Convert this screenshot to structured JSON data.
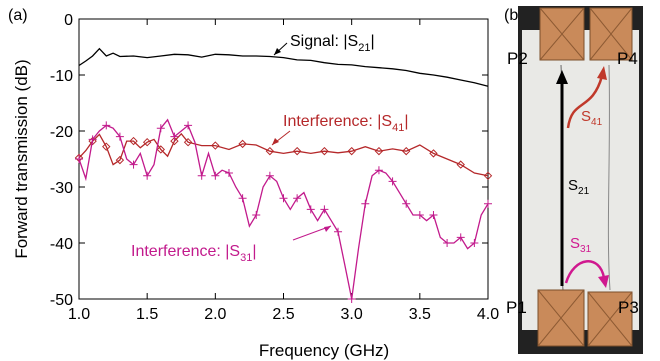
{
  "chart_data": {
    "type": "line",
    "panel_label": "(a)",
    "xlabel": "Frequency (GHz)",
    "ylabel": "Forward transmission (dB)",
    "xlim": [
      1.0,
      4.0
    ],
    "ylim": [
      -50,
      0
    ],
    "xticks": [
      1.0,
      1.5,
      2.0,
      2.5,
      3.0,
      3.5,
      4.0
    ],
    "xtick_labels": [
      "1.0",
      "1.5",
      "2.0",
      "2.5",
      "3.0",
      "3.5",
      "4.0"
    ],
    "yticks": [
      0,
      -10,
      -20,
      -30,
      -40,
      -50
    ],
    "ytick_labels": [
      "0",
      "-10",
      "-20",
      "-30",
      "-40",
      "-50"
    ],
    "grid": false,
    "legend": "none (inline annotations)",
    "series": [
      {
        "name": "Signal: |S21|",
        "color": "#000000",
        "marker": "none",
        "x": [
          1.0,
          1.05,
          1.1,
          1.15,
          1.2,
          1.25,
          1.3,
          1.4,
          1.5,
          1.6,
          1.7,
          1.8,
          1.9,
          2.0,
          2.1,
          2.2,
          2.3,
          2.4,
          2.5,
          2.6,
          2.7,
          2.8,
          2.9,
          3.0,
          3.1,
          3.2,
          3.3,
          3.4,
          3.5,
          3.6,
          3.7,
          3.8,
          3.9,
          4.0
        ],
        "y": [
          -8.3,
          -7.5,
          -6.6,
          -5.3,
          -6.6,
          -6.1,
          -6.7,
          -6.6,
          -6.9,
          -6.6,
          -6.3,
          -6.4,
          -6.8,
          -6.3,
          -6.4,
          -6.6,
          -6.6,
          -6.7,
          -6.9,
          -7.3,
          -7.4,
          -7.8,
          -8.1,
          -8.2,
          -8.5,
          -8.7,
          -8.9,
          -9.2,
          -9.7,
          -10.0,
          -10.4,
          -10.9,
          -11.4,
          -12.0
        ]
      },
      {
        "name": "Interference: |S41|",
        "color": "#b5282a",
        "marker": "diamond",
        "x": [
          1.0,
          1.05,
          1.1,
          1.15,
          1.2,
          1.25,
          1.3,
          1.35,
          1.4,
          1.45,
          1.5,
          1.55,
          1.6,
          1.65,
          1.7,
          1.75,
          1.8,
          1.9,
          2.0,
          2.1,
          2.2,
          2.3,
          2.4,
          2.5,
          2.6,
          2.7,
          2.8,
          2.9,
          3.0,
          3.1,
          3.2,
          3.3,
          3.4,
          3.5,
          3.6,
          3.7,
          3.8,
          3.9,
          4.0
        ],
        "y": [
          -24.8,
          -23.5,
          -21.8,
          -20.6,
          -22.8,
          -26.0,
          -25.2,
          -21.8,
          -21.8,
          -23.0,
          -22.0,
          -21.5,
          -23.3,
          -24.5,
          -21.8,
          -20.5,
          -22.0,
          -22.6,
          -22.6,
          -23.3,
          -22.3,
          -22.5,
          -23.6,
          -24.0,
          -23.6,
          -24.0,
          -23.6,
          -23.9,
          -23.6,
          -22.8,
          -23.6,
          -23.2,
          -23.6,
          -22.5,
          -24.0,
          -25.0,
          -26.0,
          -27.5,
          -28.0
        ]
      },
      {
        "name": "Interference: |S31|",
        "color": "#c21a8c",
        "marker": "plus",
        "x": [
          1.0,
          1.05,
          1.1,
          1.15,
          1.2,
          1.25,
          1.3,
          1.35,
          1.4,
          1.45,
          1.5,
          1.55,
          1.6,
          1.65,
          1.7,
          1.75,
          1.8,
          1.85,
          1.9,
          1.95,
          2.0,
          2.05,
          2.1,
          2.15,
          2.2,
          2.25,
          2.3,
          2.35,
          2.4,
          2.45,
          2.5,
          2.55,
          2.6,
          2.65,
          2.7,
          2.75,
          2.8,
          2.85,
          2.9,
          2.95,
          3.0,
          3.05,
          3.1,
          3.15,
          3.2,
          3.25,
          3.3,
          3.35,
          3.4,
          3.45,
          3.5,
          3.55,
          3.6,
          3.65,
          3.7,
          3.75,
          3.8,
          3.85,
          3.9,
          3.95,
          4.0
        ],
        "y": [
          -25.0,
          -28.5,
          -21.5,
          -20.0,
          -19.0,
          -19.5,
          -21.0,
          -25.0,
          -26.0,
          -24.0,
          -28.0,
          -26.0,
          -19.5,
          -18.0,
          -21.0,
          -20.0,
          -19.0,
          -22.0,
          -28.0,
          -24.0,
          -28.0,
          -27.0,
          -27.5,
          -30.0,
          -32.0,
          -37.0,
          -35.0,
          -30.0,
          -28.0,
          -29.0,
          -32.0,
          -34.0,
          -32.0,
          -31.0,
          -34.0,
          -36.0,
          -34.0,
          -36.0,
          -38.0,
          -44.0,
          -50.0,
          -41.0,
          -33.0,
          -28.0,
          -27.0,
          -27.5,
          -29.0,
          -31.0,
          -33.0,
          -35.0,
          -35.0,
          -36.0,
          -35.0,
          -39.0,
          -40.0,
          -40.0,
          -39.0,
          -41.0,
          -40.0,
          -35.0,
          -33.0
        ]
      }
    ],
    "annotations": [
      {
        "prefix": "Signal: |S",
        "sub": "21",
        "suffix": "|",
        "color": "#000000"
      },
      {
        "prefix": "Interference: |S",
        "sub": "41",
        "suffix": "|",
        "color": "#b5282a"
      },
      {
        "prefix": "Interference: |S",
        "sub": "31",
        "suffix": "|",
        "color": "#c21a8c"
      }
    ]
  },
  "photo_panel": {
    "panel_label": "(b)",
    "ports": [
      "P1",
      "P2",
      "P3",
      "P4"
    ],
    "arrow_labels": [
      {
        "main": "S",
        "sub": "21",
        "color": "#000000"
      },
      {
        "main": "S",
        "sub": "41",
        "color": "#c0392b"
      },
      {
        "main": "S",
        "sub": "31",
        "color": "#d0188f"
      }
    ],
    "colors": {
      "copper": "#c98a5a",
      "background": "#222222",
      "board": "#e9e9e6"
    }
  }
}
